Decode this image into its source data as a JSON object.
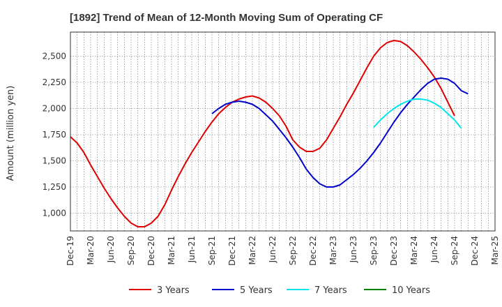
{
  "chart_data": {
    "type": "line",
    "title": "[1892]  Trend of Mean of 12-Month Moving Sum of Operating CF",
    "xlabel": "",
    "ylabel": "Amount (million yen)",
    "ylim": [
      830,
      2730
    ],
    "yticks": [
      1000,
      1250,
      1500,
      1750,
      2000,
      2250,
      2500
    ],
    "ytick_labels": [
      "1,000",
      "1,250",
      "1,500",
      "1,750",
      "2,000",
      "2,250",
      "2,500"
    ],
    "x_start": "Dec-19",
    "x_months": 63,
    "xtick_labels": [
      "Dec-19",
      "Mar-20",
      "Jun-20",
      "Sep-20",
      "Dec-20",
      "Mar-21",
      "Jun-21",
      "Sep-21",
      "Dec-21",
      "Mar-22",
      "Jun-22",
      "Sep-22",
      "Dec-22",
      "Mar-23",
      "Jun-23",
      "Sep-23",
      "Dec-23",
      "Mar-24",
      "Jun-24",
      "Sep-24",
      "Dec-24",
      "Mar-25"
    ],
    "grid": true,
    "legend_position": "bottom",
    "series": [
      {
        "name": "3 Years",
        "color": "#e00000",
        "start_index": 0,
        "values": [
          1730,
          1670,
          1580,
          1460,
          1350,
          1240,
          1140,
          1050,
          970,
          905,
          870,
          870,
          905,
          970,
          1080,
          1220,
          1350,
          1470,
          1580,
          1680,
          1780,
          1870,
          1950,
          2010,
          2060,
          2090,
          2110,
          2120,
          2100,
          2060,
          2000,
          1930,
          1830,
          1700,
          1630,
          1590,
          1590,
          1620,
          1700,
          1810,
          1920,
          2040,
          2150,
          2270,
          2390,
          2500,
          2580,
          2630,
          2650,
          2640,
          2600,
          2540,
          2470,
          2390,
          2300,
          2190,
          2060,
          1930
        ]
      },
      {
        "name": "5 Years",
        "color": "#0000cc",
        "start_index": 21,
        "values": [
          1950,
          2000,
          2040,
          2060,
          2070,
          2060,
          2040,
          2000,
          1940,
          1880,
          1800,
          1720,
          1630,
          1530,
          1420,
          1340,
          1280,
          1250,
          1250,
          1270,
          1320,
          1370,
          1430,
          1500,
          1580,
          1670,
          1770,
          1870,
          1960,
          2040,
          2110,
          2180,
          2240,
          2280,
          2290,
          2280,
          2240,
          2170,
          2140
        ]
      },
      {
        "name": "7 Years",
        "color": "#00e5ee",
        "start_index": 45,
        "values": [
          1820,
          1890,
          1950,
          2000,
          2040,
          2070,
          2090,
          2090,
          2080,
          2050,
          2010,
          1950,
          1890,
          1810
        ]
      },
      {
        "name": "10 Years",
        "color": "#008000",
        "start_index": 0,
        "values": []
      }
    ]
  }
}
